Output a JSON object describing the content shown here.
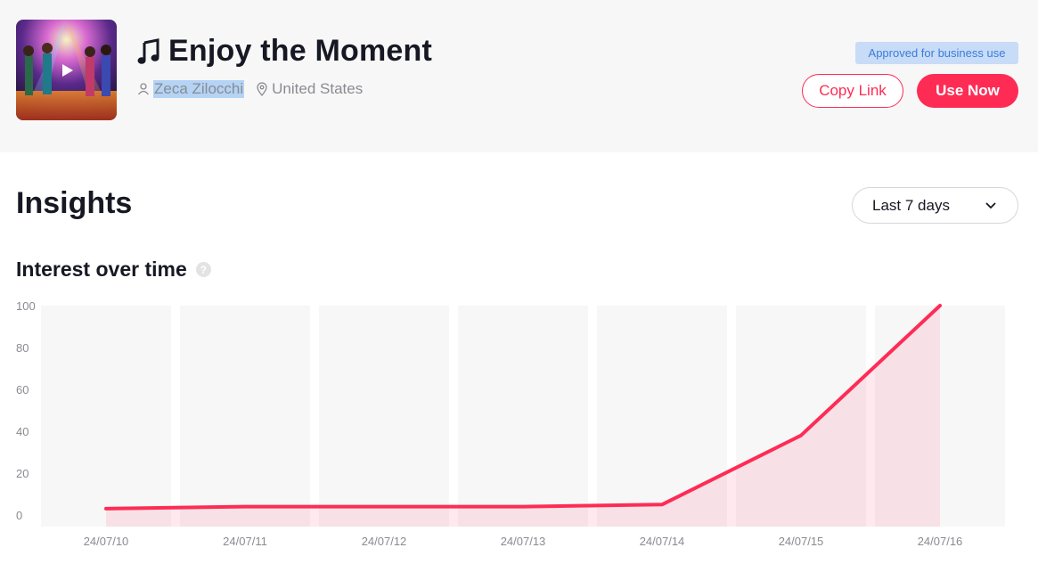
{
  "header": {
    "cover_alt": "album-cover",
    "title": "Enjoy the Moment",
    "author": "Zeca Zilocchi",
    "location": "United States",
    "badge": "Approved for business use",
    "copy_link_label": "Copy Link",
    "use_now_label": "Use Now"
  },
  "insights": {
    "heading": "Insights",
    "range_label": "Last 7 days",
    "subtitle": "Interest over time",
    "help_symbol": "?"
  },
  "colors": {
    "accent": "#fe2c55",
    "badge_bg": "#c8dcf7",
    "badge_text": "#3b7cd9"
  },
  "chart_data": {
    "type": "area",
    "title": "Interest over time",
    "x": [
      "24/07/10",
      "24/07/11",
      "24/07/12",
      "24/07/13",
      "24/07/14",
      "24/07/15",
      "24/07/16"
    ],
    "series": [
      {
        "values": [
          3,
          4,
          4,
          4,
          5,
          38,
          100
        ]
      }
    ],
    "y_ticks": [
      0,
      20,
      40,
      60,
      80,
      100
    ],
    "ylim": [
      0,
      100
    ],
    "grid": false,
    "color": "#fe2c55"
  }
}
